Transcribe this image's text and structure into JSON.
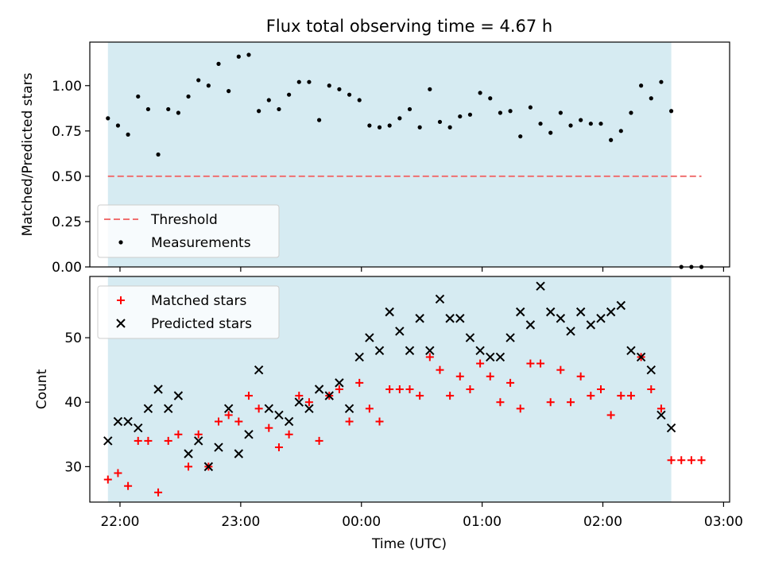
{
  "chart_data": [
    {
      "type": "scatter",
      "title": "Flux total observing time = 4.67 h",
      "ylabel": "Matched/Predicted stars",
      "xlabel": "",
      "ylim": [
        0.0,
        1.24
      ],
      "yticks": [
        "0.00",
        "0.25",
        "0.50",
        "0.75",
        "1.00"
      ],
      "shaded_span": {
        "from": "21:54",
        "to": "02:34",
        "color": "#add8e6"
      },
      "legend": {
        "placement": "lower-left",
        "entries": [
          "Threshold",
          "Measurements"
        ]
      },
      "series": [
        {
          "name": "Threshold",
          "style": "dashed-line",
          "color": "#f07070",
          "x": [
            "21:54",
            "02:49"
          ],
          "y": [
            0.5,
            0.5
          ]
        },
        {
          "name": "Measurements",
          "style": "dot",
          "color": "#000000",
          "x": [
            "21:54",
            "21:59",
            "22:04",
            "22:09",
            "22:14",
            "22:19",
            "22:24",
            "22:29",
            "22:34",
            "22:39",
            "22:44",
            "22:49",
            "22:54",
            "22:59",
            "23:04",
            "23:09",
            "23:14",
            "23:19",
            "23:24",
            "23:29",
            "23:34",
            "23:39",
            "23:44",
            "23:49",
            "23:54",
            "23:59",
            "00:04",
            "00:09",
            "00:14",
            "00:19",
            "00:24",
            "00:29",
            "00:34",
            "00:39",
            "00:44",
            "00:49",
            "00:54",
            "00:59",
            "01:04",
            "01:09",
            "01:14",
            "01:19",
            "01:24",
            "01:29",
            "01:34",
            "01:39",
            "01:44",
            "01:49",
            "01:54",
            "01:59",
            "02:04",
            "02:09",
            "02:14",
            "02:19",
            "02:24",
            "02:29",
            "02:34",
            "02:39",
            "02:44",
            "02:49"
          ],
          "y": [
            0.82,
            0.78,
            0.73,
            0.94,
            0.87,
            0.62,
            0.87,
            0.85,
            0.94,
            1.03,
            1.0,
            1.12,
            0.97,
            1.16,
            1.17,
            0.86,
            0.92,
            0.87,
            0.95,
            1.02,
            1.02,
            0.81,
            1.0,
            0.98,
            0.95,
            0.92,
            0.78,
            0.77,
            0.78,
            0.82,
            0.87,
            0.77,
            0.98,
            0.8,
            0.77,
            0.83,
            0.84,
            0.96,
            0.93,
            0.85,
            0.86,
            0.72,
            0.88,
            0.79,
            0.74,
            0.85,
            0.78,
            0.81,
            0.79,
            0.79,
            0.7,
            0.75,
            0.85,
            1.0,
            0.93,
            1.02,
            0.86,
            0.0,
            0.0,
            0.0
          ]
        }
      ]
    },
    {
      "type": "scatter",
      "title": "",
      "ylabel": "Count",
      "xlabel": "Time (UTC)",
      "ylim": [
        24.5,
        59.5
      ],
      "yticks": [
        "30",
        "40",
        "50"
      ],
      "xlim": [
        "21:45",
        "03:03"
      ],
      "xticks": [
        "22:00",
        "23:00",
        "00:00",
        "01:00",
        "02:00",
        "03:00"
      ],
      "shaded_span": {
        "from": "21:54",
        "to": "02:34",
        "color": "#add8e6"
      },
      "legend": {
        "placement": "upper-left",
        "entries": [
          "Matched stars",
          "Predicted stars"
        ]
      },
      "series": [
        {
          "name": "Matched stars",
          "style": "plus",
          "color": "#ff0000",
          "x": [
            "21:54",
            "21:59",
            "22:04",
            "22:09",
            "22:14",
            "22:19",
            "22:24",
            "22:29",
            "22:34",
            "22:39",
            "22:44",
            "22:49",
            "22:54",
            "22:59",
            "23:04",
            "23:09",
            "23:14",
            "23:19",
            "23:24",
            "23:29",
            "23:34",
            "23:39",
            "23:44",
            "23:49",
            "23:54",
            "23:59",
            "00:04",
            "00:09",
            "00:14",
            "00:19",
            "00:24",
            "00:29",
            "00:34",
            "00:39",
            "00:44",
            "00:49",
            "00:54",
            "00:59",
            "01:04",
            "01:09",
            "01:14",
            "01:19",
            "01:24",
            "01:29",
            "01:34",
            "01:39",
            "01:44",
            "01:49",
            "01:54",
            "01:59",
            "02:04",
            "02:09",
            "02:14",
            "02:19",
            "02:24",
            "02:29",
            "02:34",
            "02:39",
            "02:44",
            "02:49"
          ],
          "y": [
            28,
            29,
            27,
            34,
            34,
            26,
            34,
            35,
            30,
            35,
            30,
            37,
            38,
            37,
            41,
            39,
            36,
            33,
            35,
            41,
            40,
            34,
            41,
            42,
            37,
            43,
            39,
            37,
            42,
            42,
            42,
            41,
            47,
            45,
            41,
            44,
            42,
            46,
            44,
            40,
            43,
            39,
            46,
            46,
            40,
            45,
            40,
            44,
            41,
            42,
            38,
            41,
            41,
            47,
            42,
            39,
            31,
            31,
            31,
            31
          ]
        },
        {
          "name": "Predicted stars",
          "style": "cross",
          "color": "#000000",
          "x": [
            "21:54",
            "21:59",
            "22:04",
            "22:09",
            "22:14",
            "22:19",
            "22:24",
            "22:29",
            "22:34",
            "22:39",
            "22:44",
            "22:49",
            "22:54",
            "22:59",
            "23:04",
            "23:09",
            "23:14",
            "23:19",
            "23:24",
            "23:29",
            "23:34",
            "23:39",
            "23:44",
            "23:49",
            "23:54",
            "23:59",
            "00:04",
            "00:09",
            "00:14",
            "00:19",
            "00:24",
            "00:29",
            "00:34",
            "00:39",
            "00:44",
            "00:49",
            "00:54",
            "00:59",
            "01:04",
            "01:09",
            "01:14",
            "01:19",
            "01:24",
            "01:29",
            "01:34",
            "01:39",
            "01:44",
            "01:49",
            "01:54",
            "01:59",
            "02:04",
            "02:09",
            "02:14",
            "02:19",
            "02:24",
            "02:29",
            "02:34"
          ],
          "y": [
            34,
            37,
            37,
            36,
            39,
            42,
            39,
            41,
            32,
            34,
            30,
            33,
            39,
            32,
            35,
            45,
            39,
            38,
            37,
            40,
            39,
            42,
            41,
            43,
            39,
            47,
            50,
            48,
            54,
            51,
            48,
            53,
            48,
            56,
            53,
            53,
            50,
            48,
            47,
            47,
            50,
            54,
            52,
            58,
            54,
            53,
            51,
            54,
            52,
            53,
            54,
            55,
            48,
            47,
            45,
            38,
            36
          ]
        }
      ]
    }
  ]
}
